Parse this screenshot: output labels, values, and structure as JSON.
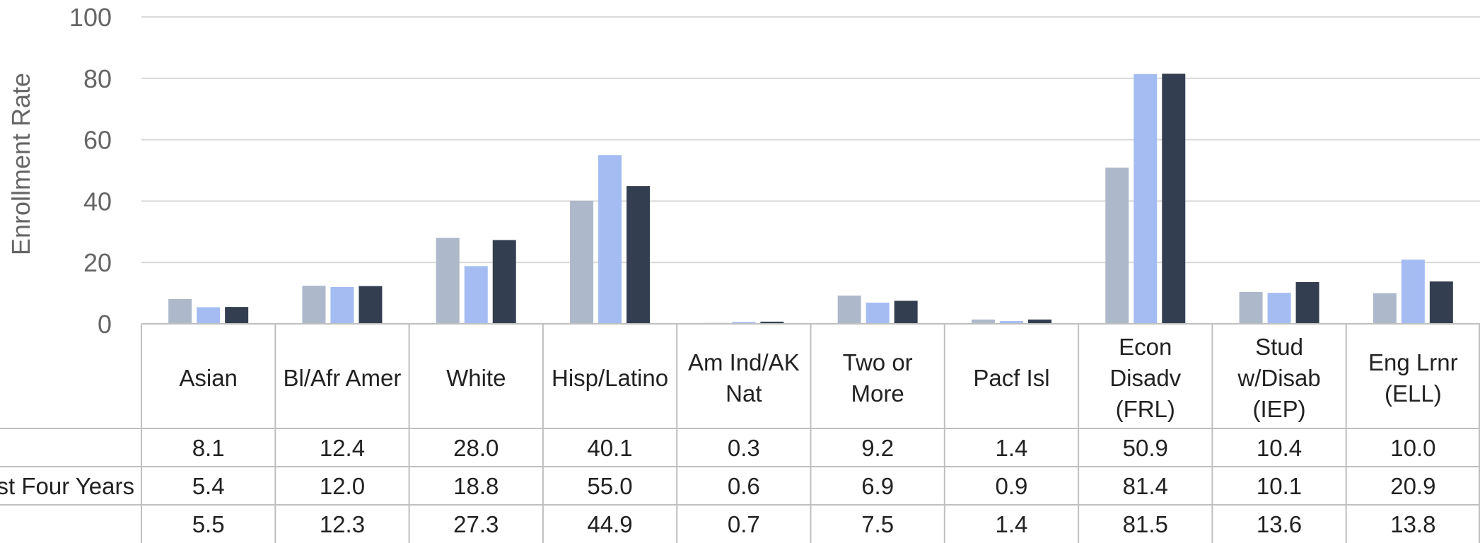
{
  "chart_data": {
    "type": "bar",
    "ylabel": "Enrollment Rate",
    "ylim": [
      0,
      100
    ],
    "yticks": [
      0,
      20,
      40,
      60,
      80,
      100
    ],
    "grid": true,
    "categories": [
      [
        "Asian"
      ],
      [
        "Bl/Afr Amer"
      ],
      [
        "White"
      ],
      [
        "Hisp/Latino"
      ],
      [
        "Am Ind/AK",
        "Nat"
      ],
      [
        "Two or",
        "More"
      ],
      [
        "Pacf Isl"
      ],
      [
        "Econ",
        "Disadv",
        "(FRL)"
      ],
      [
        "Stud",
        "w/Disab",
        "(IEP)"
      ],
      [
        "Eng Lrnr",
        "(ELL)"
      ]
    ],
    "series": [
      {
        "row_label": "",
        "color": "#adb9ca",
        "values": [
          8.1,
          12.4,
          28.0,
          40.1,
          0.3,
          9.2,
          1.4,
          50.9,
          10.4,
          10.0
        ],
        "display": [
          "8.1",
          "12.4",
          "28.0",
          "40.1",
          "0.3",
          "9.2",
          "1.4",
          "50.9",
          "10.4",
          "10.0"
        ]
      },
      {
        "row_label": "st Four Years",
        "color": "#a4bcf2",
        "values": [
          5.4,
          12.0,
          18.8,
          55.0,
          0.6,
          6.9,
          0.9,
          81.4,
          10.1,
          20.9
        ],
        "display": [
          "5.4",
          "12.0",
          "18.8",
          "55.0",
          "0.6",
          "6.9",
          "0.9",
          "81.4",
          "10.1",
          "20.9"
        ]
      },
      {
        "row_label": "",
        "color": "#333f50",
        "values": [
          5.5,
          12.3,
          27.3,
          44.9,
          0.7,
          7.5,
          1.4,
          81.5,
          13.6,
          13.8
        ],
        "display": [
          "5.5",
          "12.3",
          "27.3",
          "44.9",
          "0.7",
          "7.5",
          "1.4",
          "81.5",
          "13.6",
          "13.8"
        ]
      }
    ]
  }
}
